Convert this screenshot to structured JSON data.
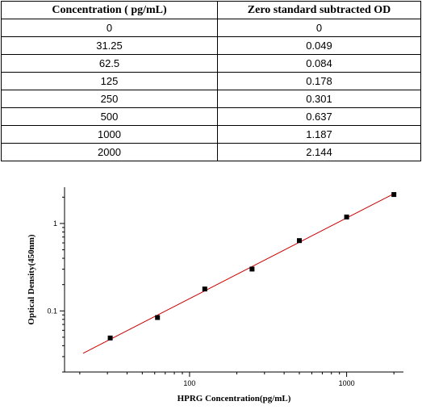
{
  "table": {
    "headers": [
      "Concentration ( pg/mL)",
      "Zero standard subtracted OD"
    ],
    "rows": [
      [
        "0",
        "0"
      ],
      [
        "31.25",
        "0.049"
      ],
      [
        "62.5",
        "0.084"
      ],
      [
        "125",
        "0.178"
      ],
      [
        "250",
        "0.301"
      ],
      [
        "500",
        "0.637"
      ],
      [
        "1000",
        "1.187"
      ],
      [
        "2000",
        "2.144"
      ]
    ]
  },
  "chart_data": {
    "type": "scatter",
    "xscale": "log",
    "yscale": "log",
    "xlabel": "HPRG Concentration(pg/mL)",
    "ylabel": "Optical Density(450nm)",
    "xlim": [
      16,
      2300
    ],
    "ylim": [
      0.02,
      2.6
    ],
    "xticks": [
      100,
      1000
    ],
    "xtick_labels": [
      "100",
      "1000"
    ],
    "yticks": [
      0.1,
      1
    ],
    "ytick_labels": [
      "0.1",
      "1"
    ],
    "series": [
      {
        "x": [
          31.25,
          62.5,
          125,
          250,
          500,
          1000,
          2000
        ],
        "y": [
          0.049,
          0.084,
          0.178,
          0.301,
          0.637,
          1.187,
          2.144
        ],
        "marker": "square",
        "color": "#000000"
      }
    ],
    "fit_line": {
      "x_range": [
        21,
        2000
      ],
      "color": "#cc0000"
    },
    "grid": false
  }
}
